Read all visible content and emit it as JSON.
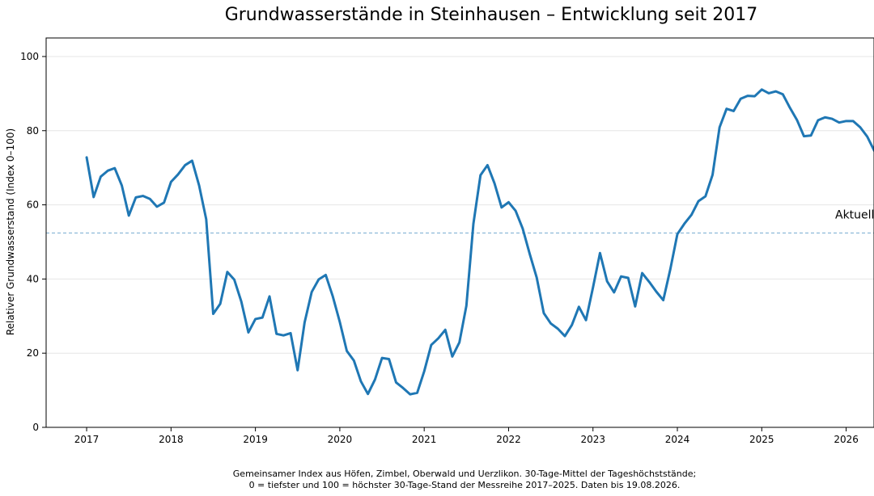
{
  "chart_data": {
    "type": "line",
    "title": "Grundwasserstände in Steinhausen – Entwicklung seit 2017",
    "xlabel": "",
    "ylabel": "Relativer Grundwasserstand (Index 0–100)",
    "ylim": [
      0,
      105
    ],
    "yticks": [
      0,
      20,
      40,
      60,
      80,
      100
    ],
    "xticks": [
      "2017",
      "2018",
      "2019",
      "2020",
      "2021",
      "2022",
      "2023",
      "2024",
      "2025",
      "2026"
    ],
    "grid": "horizontal",
    "x_unit": "year",
    "series": [
      {
        "color": "#1f77b4",
        "points": [
          [
            2017.0,
            72.8
          ],
          [
            2017.083,
            62.1
          ],
          [
            2017.167,
            67.6
          ],
          [
            2017.25,
            69.2
          ],
          [
            2017.333,
            69.9
          ],
          [
            2017.417,
            65.2
          ],
          [
            2017.5,
            57.1
          ],
          [
            2017.583,
            62.0
          ],
          [
            2017.667,
            62.4
          ],
          [
            2017.75,
            61.6
          ],
          [
            2017.833,
            59.5
          ],
          [
            2017.917,
            60.6
          ],
          [
            2018.0,
            66.2
          ],
          [
            2018.083,
            68.2
          ],
          [
            2018.167,
            70.7
          ],
          [
            2018.25,
            71.9
          ],
          [
            2018.333,
            65.2
          ],
          [
            2018.417,
            56.1
          ],
          [
            2018.5,
            30.6
          ],
          [
            2018.583,
            33.3
          ],
          [
            2018.667,
            41.9
          ],
          [
            2018.75,
            39.8
          ],
          [
            2018.833,
            33.9
          ],
          [
            2018.917,
            25.6
          ],
          [
            2019.0,
            29.2
          ],
          [
            2019.083,
            29.6
          ],
          [
            2019.167,
            35.3
          ],
          [
            2019.25,
            25.2
          ],
          [
            2019.333,
            24.8
          ],
          [
            2019.417,
            25.4
          ],
          [
            2019.5,
            15.4
          ],
          [
            2019.583,
            28.3
          ],
          [
            2019.667,
            36.5
          ],
          [
            2019.75,
            39.9
          ],
          [
            2019.833,
            41.1
          ],
          [
            2019.917,
            35.3
          ],
          [
            2020.0,
            28.4
          ],
          [
            2020.083,
            20.6
          ],
          [
            2020.167,
            18.0
          ],
          [
            2020.25,
            12.4
          ],
          [
            2020.333,
            9.0
          ],
          [
            2020.417,
            12.9
          ],
          [
            2020.5,
            18.7
          ],
          [
            2020.583,
            18.4
          ],
          [
            2020.667,
            12.1
          ],
          [
            2020.75,
            10.6
          ],
          [
            2020.833,
            8.9
          ],
          [
            2020.917,
            9.3
          ],
          [
            2021.0,
            15.1
          ],
          [
            2021.083,
            22.2
          ],
          [
            2021.167,
            24.0
          ],
          [
            2021.25,
            26.3
          ],
          [
            2021.333,
            19.1
          ],
          [
            2021.417,
            22.9
          ],
          [
            2021.5,
            32.8
          ],
          [
            2021.583,
            54.9
          ],
          [
            2021.667,
            68.0
          ],
          [
            2021.75,
            70.7
          ],
          [
            2021.833,
            65.8
          ],
          [
            2021.917,
            59.3
          ],
          [
            2022.0,
            60.7
          ],
          [
            2022.083,
            58.4
          ],
          [
            2022.167,
            53.6
          ],
          [
            2022.25,
            46.8
          ],
          [
            2022.333,
            40.4
          ],
          [
            2022.417,
            30.8
          ],
          [
            2022.5,
            28.0
          ],
          [
            2022.583,
            26.6
          ],
          [
            2022.667,
            24.6
          ],
          [
            2022.75,
            27.6
          ],
          [
            2022.833,
            32.5
          ],
          [
            2022.917,
            28.9
          ],
          [
            2023.0,
            37.7
          ],
          [
            2023.083,
            47.0
          ],
          [
            2023.167,
            39.4
          ],
          [
            2023.25,
            36.4
          ],
          [
            2023.333,
            40.7
          ],
          [
            2023.417,
            40.3
          ],
          [
            2023.5,
            32.6
          ],
          [
            2023.583,
            41.6
          ],
          [
            2023.667,
            39.2
          ],
          [
            2023.75,
            36.6
          ],
          [
            2023.833,
            34.3
          ],
          [
            2023.917,
            42.7
          ],
          [
            2024.0,
            52.1
          ],
          [
            2024.083,
            54.9
          ],
          [
            2024.167,
            57.3
          ],
          [
            2024.25,
            61.0
          ],
          [
            2024.333,
            62.3
          ],
          [
            2024.417,
            68.1
          ],
          [
            2024.5,
            80.9
          ],
          [
            2024.583,
            85.9
          ],
          [
            2024.667,
            85.3
          ],
          [
            2024.75,
            88.6
          ],
          [
            2024.833,
            89.4
          ],
          [
            2024.917,
            89.3
          ],
          [
            2025.0,
            91.1
          ],
          [
            2025.083,
            90.1
          ],
          [
            2025.167,
            90.6
          ],
          [
            2025.25,
            89.8
          ],
          [
            2025.333,
            86.2
          ],
          [
            2025.417,
            82.9
          ],
          [
            2025.5,
            78.5
          ],
          [
            2025.583,
            78.7
          ],
          [
            2025.667,
            82.8
          ],
          [
            2025.75,
            83.6
          ],
          [
            2025.833,
            83.2
          ],
          [
            2025.917,
            82.2
          ],
          [
            2026.0,
            82.6
          ],
          [
            2026.083,
            82.6
          ],
          [
            2026.167,
            80.9
          ],
          [
            2026.25,
            78.4
          ],
          [
            2026.333,
            74.6
          ],
          [
            2026.417,
            71.2
          ]
        ]
      }
    ],
    "reference_line": {
      "y": 52.4,
      "label": "Aktuell",
      "color": "#1f77b4"
    },
    "caption": [
      "Gemeinsamer Index aus Höfen, Zimbel, Oberwald und Uerzlikon. 30-Tage-Mittel der Tageshöchststände;",
      "0 = tiefster und 100 = höchster 30-Tage-Stand der Messreihe 2017–2025. Daten bis 19.08.2026."
    ]
  }
}
